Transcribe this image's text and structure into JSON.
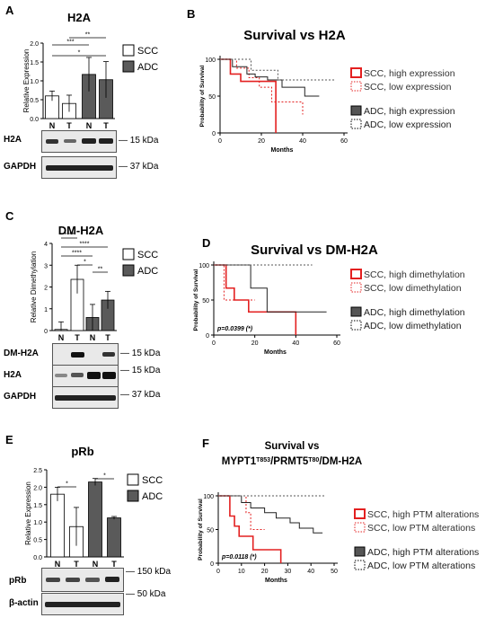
{
  "colors": {
    "scc_fill": "#ffffff",
    "adc_fill": "#5a5a5a",
    "red": "#e32020",
    "black": "#222222",
    "blot_bg": "#e8e8e8"
  },
  "panels": {
    "A": {
      "label": "A",
      "title": "H2A",
      "ylabel": "Relative Expression",
      "legend": [
        "SCC",
        "ADC"
      ],
      "ticks": [
        "0.0",
        "0.5",
        "1.0",
        "1.5",
        "2.0"
      ],
      "sig": [
        "**",
        "***",
        "*"
      ],
      "xticks": [
        "N",
        "T",
        "N",
        "T"
      ],
      "blots": [
        {
          "name": "H2A",
          "kda": "15 kDa"
        },
        {
          "name": "GAPDH",
          "kda": "37 kDa"
        }
      ]
    },
    "B": {
      "label": "B",
      "title": "Survival vs H2A",
      "ylabel": "Probability of Survival",
      "xlabel": "Months",
      "ticks_y": [
        "0",
        "50",
        "100"
      ],
      "ticks_x": [
        "0",
        "20",
        "40",
        "60"
      ],
      "legend": [
        "SCC, high expression",
        "SCC, low expression",
        "ADC, high expression",
        "ADC, low expression"
      ]
    },
    "C": {
      "label": "C",
      "title": "DM-H2A",
      "ylabel": "Relative Dimethylation",
      "legend": [
        "SCC",
        "ADC"
      ],
      "ticks": [
        "0",
        "1",
        "2",
        "3",
        "4"
      ],
      "sig": [
        "****",
        "****",
        "****",
        "*",
        "**"
      ],
      "xticks": [
        "N",
        "T",
        "N",
        "T"
      ],
      "blots": [
        {
          "name": "DM-H2A",
          "kda": "15 kDa"
        },
        {
          "name": "H2A",
          "kda": "15 kDa"
        },
        {
          "name": "GAPDH",
          "kda": "37 kDa"
        }
      ]
    },
    "D": {
      "label": "D",
      "title": "Survival vs DM-H2A",
      "ylabel": "Probability of Survival",
      "xlabel": "Months",
      "ticks_y": [
        "0",
        "50",
        "100"
      ],
      "ticks_x": [
        "0",
        "20",
        "40",
        "60"
      ],
      "pvalue": "p=0.0399 (*)",
      "legend": [
        "SCC, high dimethylation",
        "SCC, low dimethylation",
        "ADC, high dimethylation",
        "ADC, low dimethylation"
      ]
    },
    "E": {
      "label": "E",
      "title": "pRb",
      "ylabel": "Relative Expression",
      "legend": [
        "SCC",
        "ADC"
      ],
      "ticks": [
        "0.0",
        "0.5",
        "1.0",
        "1.5",
        "2.0",
        "2.5"
      ],
      "sig": [
        "*",
        "*"
      ],
      "xticks": [
        "N",
        "T",
        "N",
        "T"
      ],
      "blots": [
        {
          "name": "pRb",
          "kda": "150 kDa"
        },
        {
          "name": "β-actin",
          "kda": "50 kDa"
        }
      ]
    },
    "F": {
      "label": "F",
      "title_line1": "Survival vs",
      "title_line2": "MYPT1",
      "sup1": "T853",
      "mid": "/PRMT5",
      "sup2": "T80",
      "end": "/DM-H2A",
      "ylabel": "Probability of Survival",
      "xlabel": "Months",
      "ticks_y": [
        "0",
        "50",
        "100"
      ],
      "ticks_x": [
        "0",
        "10",
        "20",
        "30",
        "40",
        "50"
      ],
      "pvalue": "p=0.0118 (*)",
      "legend": [
        "SCC, high PTM alterations",
        "SCC, low PTM alterations",
        "ADC, high PTM alterations",
        "ADC, low PTM alterations"
      ]
    }
  },
  "chart_data": [
    {
      "type": "bar",
      "panel": "A",
      "categories": [
        "N",
        "T",
        "N",
        "T"
      ],
      "series": [
        {
          "name": "SCC",
          "values": [
            0.6,
            0.4,
            null,
            null
          ],
          "errors": [
            0.13,
            0.22,
            null,
            null
          ]
        },
        {
          "name": "ADC",
          "values": [
            null,
            null,
            1.17,
            1.03
          ],
          "errors": [
            null,
            null,
            0.45,
            0.48
          ]
        }
      ],
      "title": "H2A",
      "ylabel": "Relative Expression",
      "ylim": [
        0,
        2.0
      ]
    },
    {
      "type": "line",
      "panel": "B",
      "title": "Survival vs H2A",
      "xlabel": "Months",
      "ylabel": "Probability of Survival",
      "xlim": [
        0,
        60
      ],
      "ylim": [
        0,
        100
      ],
      "series": [
        {
          "name": "SCC, high expression",
          "x": [
            0,
            5,
            5,
            10,
            10,
            27,
            27
          ],
          "y": [
            100,
            100,
            80,
            80,
            70,
            70,
            0
          ]
        },
        {
          "name": "SCC, low expression",
          "x": [
            0,
            8,
            8,
            14,
            14,
            19,
            19,
            25,
            25,
            40,
            40
          ],
          "y": [
            100,
            100,
            88,
            88,
            75,
            75,
            62,
            62,
            42,
            42,
            25
          ]
        },
        {
          "name": "ADC, high expression",
          "x": [
            0,
            6,
            6,
            13,
            13,
            17,
            17,
            23,
            23,
            30,
            30,
            41,
            41,
            48
          ],
          "y": [
            100,
            100,
            90,
            90,
            80,
            80,
            76,
            76,
            72,
            72,
            62,
            62,
            50,
            50
          ]
        },
        {
          "name": "ADC, low expression",
          "x": [
            0,
            15,
            15,
            28,
            28,
            56
          ],
          "y": [
            100,
            100,
            85,
            85,
            72,
            72
          ]
        }
      ]
    },
    {
      "type": "bar",
      "panel": "C",
      "categories": [
        "N",
        "T",
        "N",
        "T"
      ],
      "series": [
        {
          "name": "SCC",
          "values": [
            0.05,
            2.35,
            null,
            null
          ],
          "errors": [
            0.35,
            0.65,
            null,
            null
          ]
        },
        {
          "name": "ADC",
          "values": [
            null,
            null,
            0.6,
            1.4
          ],
          "errors": [
            null,
            null,
            0.6,
            0.4
          ]
        }
      ],
      "title": "DM-H2A",
      "ylabel": "Relative Dimethylation",
      "ylim": [
        0,
        4
      ]
    },
    {
      "type": "line",
      "panel": "D",
      "title": "Survival vs DM-H2A",
      "xlabel": "Months",
      "ylabel": "Probability of Survival",
      "xlim": [
        0,
        60
      ],
      "ylim": [
        0,
        100
      ],
      "series": [
        {
          "name": "SCC, high dimethylation",
          "x": [
            0,
            6,
            6,
            10,
            10,
            17,
            17,
            40,
            40
          ],
          "y": [
            100,
            100,
            67,
            67,
            50,
            50,
            33,
            33,
            0
          ]
        },
        {
          "name": "SCC, low dimethylation",
          "x": [
            0,
            5,
            5,
            20
          ],
          "y": [
            100,
            100,
            50,
            50
          ]
        },
        {
          "name": "ADC, high dimethylation",
          "x": [
            0,
            18,
            18,
            26,
            26,
            55
          ],
          "y": [
            100,
            100,
            67,
            67,
            33,
            33
          ]
        },
        {
          "name": "ADC, low dimethylation",
          "x": [
            0,
            48
          ],
          "y": [
            100,
            100
          ]
        }
      ]
    },
    {
      "type": "bar",
      "panel": "E",
      "categories": [
        "N",
        "T",
        "N",
        "T"
      ],
      "series": [
        {
          "name": "SCC",
          "values": [
            1.8,
            0.87,
            null,
            null
          ],
          "errors": [
            0.2,
            0.55,
            null,
            null
          ]
        },
        {
          "name": "ADC",
          "values": [
            null,
            null,
            2.15,
            1.12
          ],
          "errors": [
            null,
            null,
            0.1,
            0.04
          ]
        }
      ],
      "title": "pRb",
      "ylabel": "Relative Expression",
      "ylim": [
        0,
        2.5
      ]
    },
    {
      "type": "line",
      "panel": "F",
      "title": "Survival vs MYPT1T853/PRMT5T80/DM-H2A",
      "xlabel": "Months",
      "ylabel": "Probability of Survival",
      "xlim": [
        0,
        50
      ],
      "ylim": [
        0,
        100
      ],
      "series": [
        {
          "name": "SCC, high PTM alterations",
          "x": [
            0,
            5,
            5,
            7,
            7,
            9,
            9,
            15,
            15,
            27,
            27
          ],
          "y": [
            100,
            100,
            70,
            70,
            55,
            55,
            40,
            40,
            20,
            20,
            0
          ]
        },
        {
          "name": "SCC, low PTM alterations",
          "x": [
            0,
            12,
            12,
            14,
            14,
            20
          ],
          "y": [
            100,
            100,
            75,
            75,
            50,
            50
          ]
        },
        {
          "name": "ADC, high PTM alterations",
          "x": [
            0,
            10,
            10,
            14,
            14,
            20,
            20,
            25,
            25,
            31,
            31,
            35,
            35,
            41,
            41,
            45
          ],
          "y": [
            100,
            100,
            90,
            90,
            82,
            82,
            75,
            75,
            67,
            67,
            60,
            60,
            52,
            52,
            45,
            45
          ]
        },
        {
          "name": "ADC, low PTM alterations",
          "x": [
            0,
            46
          ],
          "y": [
            100,
            100
          ]
        }
      ]
    }
  ]
}
